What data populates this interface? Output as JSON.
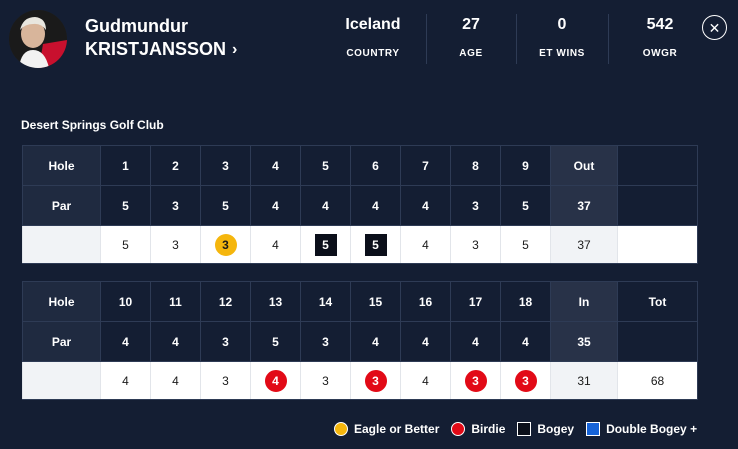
{
  "player": {
    "first_name": "Gudmundur",
    "last_name": "KRISTJANSSON",
    "chevron": "›"
  },
  "stats": [
    {
      "value": "Iceland",
      "label": "COUNTRY"
    },
    {
      "value": "27",
      "label": "AGE"
    },
    {
      "value": "0",
      "label": "ET WINS"
    },
    {
      "value": "542",
      "label": "OWGR"
    }
  ],
  "close_glyph": "✕",
  "course": "Desert Springs Golf Club",
  "front": {
    "hole_label": "Hole",
    "par_label": "Par",
    "holes": [
      "1",
      "2",
      "3",
      "4",
      "5",
      "6",
      "7",
      "8",
      "9"
    ],
    "total_label": "Out",
    "pars": [
      "5",
      "3",
      "5",
      "4",
      "4",
      "4",
      "4",
      "3",
      "5"
    ],
    "par_total": "37",
    "scores": [
      "5",
      "3",
      "3",
      "4",
      "5",
      "5",
      "4",
      "3",
      "5"
    ],
    "marks": [
      "",
      "",
      "eagle",
      "",
      "bogey",
      "bogey",
      "",
      "",
      ""
    ],
    "score_total": "37"
  },
  "back": {
    "hole_label": "Hole",
    "par_label": "Par",
    "holes": [
      "10",
      "11",
      "12",
      "13",
      "14",
      "15",
      "16",
      "17",
      "18"
    ],
    "total_label": "In",
    "grand_label": "Tot",
    "pars": [
      "4",
      "4",
      "3",
      "5",
      "3",
      "4",
      "4",
      "4",
      "4"
    ],
    "par_total": "35",
    "scores": [
      "4",
      "4",
      "3",
      "4",
      "3",
      "3",
      "4",
      "3",
      "3"
    ],
    "marks": [
      "",
      "",
      "",
      "birdie",
      "",
      "birdie",
      "",
      "birdie",
      "birdie"
    ],
    "score_total": "31",
    "grand_total": "68"
  },
  "legend": [
    {
      "key": "eagle",
      "label": "Eagle or Better",
      "color": "#f5b60d"
    },
    {
      "key": "birdie",
      "label": "Birdie",
      "color": "#e20a17"
    },
    {
      "key": "bogey",
      "label": "Bogey",
      "color": "#0b0f1a"
    },
    {
      "key": "dbogey",
      "label": "Double Bogey +",
      "color": "#1663d8"
    }
  ]
}
